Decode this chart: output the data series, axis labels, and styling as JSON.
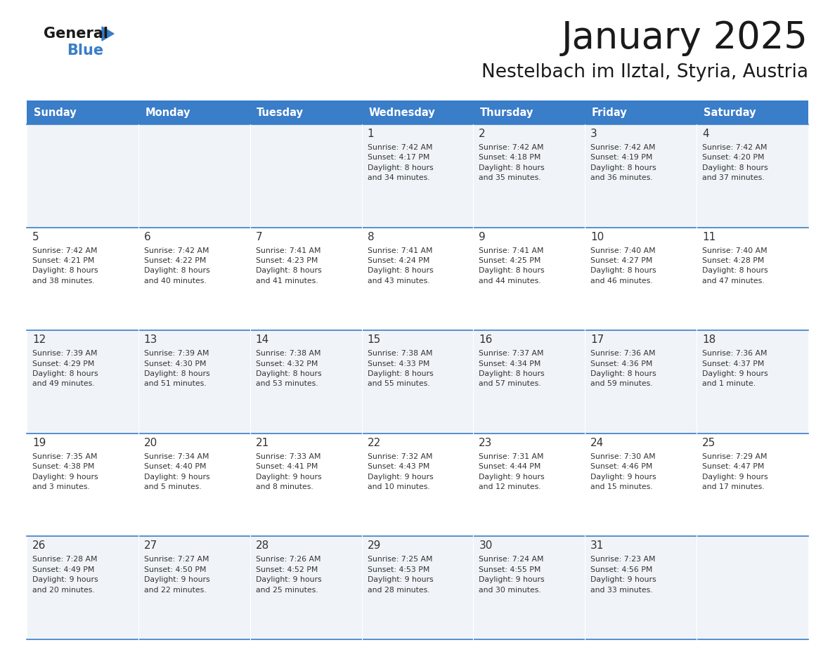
{
  "title": "January 2025",
  "subtitle": "Nestelbach im Ilztal, Styria, Austria",
  "header_color": "#3A7DC9",
  "header_text_color": "#FFFFFF",
  "cell_bg_odd": "#F0F4F8",
  "cell_bg_even": "#FFFFFF",
  "border_color": "#3A7DC9",
  "text_color": "#333333",
  "days_of_week": [
    "Sunday",
    "Monday",
    "Tuesday",
    "Wednesday",
    "Thursday",
    "Friday",
    "Saturday"
  ],
  "weeks": [
    [
      {
        "day": null,
        "info": null
      },
      {
        "day": null,
        "info": null
      },
      {
        "day": null,
        "info": null
      },
      {
        "day": 1,
        "info": "Sunrise: 7:42 AM\nSunset: 4:17 PM\nDaylight: 8 hours\nand 34 minutes."
      },
      {
        "day": 2,
        "info": "Sunrise: 7:42 AM\nSunset: 4:18 PM\nDaylight: 8 hours\nand 35 minutes."
      },
      {
        "day": 3,
        "info": "Sunrise: 7:42 AM\nSunset: 4:19 PM\nDaylight: 8 hours\nand 36 minutes."
      },
      {
        "day": 4,
        "info": "Sunrise: 7:42 AM\nSunset: 4:20 PM\nDaylight: 8 hours\nand 37 minutes."
      }
    ],
    [
      {
        "day": 5,
        "info": "Sunrise: 7:42 AM\nSunset: 4:21 PM\nDaylight: 8 hours\nand 38 minutes."
      },
      {
        "day": 6,
        "info": "Sunrise: 7:42 AM\nSunset: 4:22 PM\nDaylight: 8 hours\nand 40 minutes."
      },
      {
        "day": 7,
        "info": "Sunrise: 7:41 AM\nSunset: 4:23 PM\nDaylight: 8 hours\nand 41 minutes."
      },
      {
        "day": 8,
        "info": "Sunrise: 7:41 AM\nSunset: 4:24 PM\nDaylight: 8 hours\nand 43 minutes."
      },
      {
        "day": 9,
        "info": "Sunrise: 7:41 AM\nSunset: 4:25 PM\nDaylight: 8 hours\nand 44 minutes."
      },
      {
        "day": 10,
        "info": "Sunrise: 7:40 AM\nSunset: 4:27 PM\nDaylight: 8 hours\nand 46 minutes."
      },
      {
        "day": 11,
        "info": "Sunrise: 7:40 AM\nSunset: 4:28 PM\nDaylight: 8 hours\nand 47 minutes."
      }
    ],
    [
      {
        "day": 12,
        "info": "Sunrise: 7:39 AM\nSunset: 4:29 PM\nDaylight: 8 hours\nand 49 minutes."
      },
      {
        "day": 13,
        "info": "Sunrise: 7:39 AM\nSunset: 4:30 PM\nDaylight: 8 hours\nand 51 minutes."
      },
      {
        "day": 14,
        "info": "Sunrise: 7:38 AM\nSunset: 4:32 PM\nDaylight: 8 hours\nand 53 minutes."
      },
      {
        "day": 15,
        "info": "Sunrise: 7:38 AM\nSunset: 4:33 PM\nDaylight: 8 hours\nand 55 minutes."
      },
      {
        "day": 16,
        "info": "Sunrise: 7:37 AM\nSunset: 4:34 PM\nDaylight: 8 hours\nand 57 minutes."
      },
      {
        "day": 17,
        "info": "Sunrise: 7:36 AM\nSunset: 4:36 PM\nDaylight: 8 hours\nand 59 minutes."
      },
      {
        "day": 18,
        "info": "Sunrise: 7:36 AM\nSunset: 4:37 PM\nDaylight: 9 hours\nand 1 minute."
      }
    ],
    [
      {
        "day": 19,
        "info": "Sunrise: 7:35 AM\nSunset: 4:38 PM\nDaylight: 9 hours\nand 3 minutes."
      },
      {
        "day": 20,
        "info": "Sunrise: 7:34 AM\nSunset: 4:40 PM\nDaylight: 9 hours\nand 5 minutes."
      },
      {
        "day": 21,
        "info": "Sunrise: 7:33 AM\nSunset: 4:41 PM\nDaylight: 9 hours\nand 8 minutes."
      },
      {
        "day": 22,
        "info": "Sunrise: 7:32 AM\nSunset: 4:43 PM\nDaylight: 9 hours\nand 10 minutes."
      },
      {
        "day": 23,
        "info": "Sunrise: 7:31 AM\nSunset: 4:44 PM\nDaylight: 9 hours\nand 12 minutes."
      },
      {
        "day": 24,
        "info": "Sunrise: 7:30 AM\nSunset: 4:46 PM\nDaylight: 9 hours\nand 15 minutes."
      },
      {
        "day": 25,
        "info": "Sunrise: 7:29 AM\nSunset: 4:47 PM\nDaylight: 9 hours\nand 17 minutes."
      }
    ],
    [
      {
        "day": 26,
        "info": "Sunrise: 7:28 AM\nSunset: 4:49 PM\nDaylight: 9 hours\nand 20 minutes."
      },
      {
        "day": 27,
        "info": "Sunrise: 7:27 AM\nSunset: 4:50 PM\nDaylight: 9 hours\nand 22 minutes."
      },
      {
        "day": 28,
        "info": "Sunrise: 7:26 AM\nSunset: 4:52 PM\nDaylight: 9 hours\nand 25 minutes."
      },
      {
        "day": 29,
        "info": "Sunrise: 7:25 AM\nSunset: 4:53 PM\nDaylight: 9 hours\nand 28 minutes."
      },
      {
        "day": 30,
        "info": "Sunrise: 7:24 AM\nSunset: 4:55 PM\nDaylight: 9 hours\nand 30 minutes."
      },
      {
        "day": 31,
        "info": "Sunrise: 7:23 AM\nSunset: 4:56 PM\nDaylight: 9 hours\nand 33 minutes."
      },
      {
        "day": null,
        "info": null
      }
    ]
  ],
  "fig_width": 11.88,
  "fig_height": 9.18,
  "dpi": 100
}
